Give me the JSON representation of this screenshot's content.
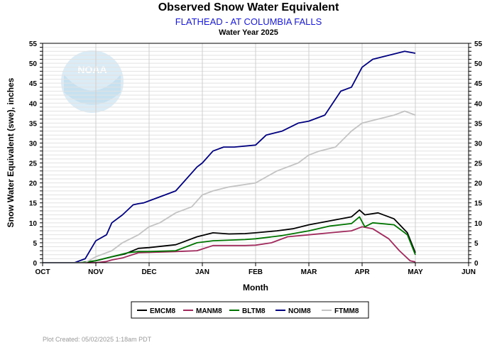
{
  "header": {
    "title": "Observed Snow Water Equivalent",
    "subtitle": "FLATHEAD - AT COLUMBIA FALLS",
    "water_year": "Water Year 2025"
  },
  "footer": {
    "plot_created": "Plot Created: 05/02/2025 1:18am PDT"
  },
  "watermark": {
    "text": "NOAA",
    "icon": "noaa-logo"
  },
  "chart_data": {
    "type": "line",
    "title": "Observed Snow Water Equivalent",
    "xlabel": "Month",
    "ylabel": "Snow Water Equivalent (swe),  inches",
    "categories": [
      "OCT",
      "NOV",
      "DEC",
      "JAN",
      "FEB",
      "MAR",
      "APR",
      "MAY",
      "JUN"
    ],
    "xlim": [
      0,
      8
    ],
    "ylim": [
      0,
      55
    ],
    "yticks": [
      0,
      5,
      10,
      15,
      20,
      25,
      30,
      35,
      40,
      45,
      50,
      55
    ],
    "grid": true,
    "legend_position": "bottom-center",
    "series": [
      {
        "name": "EMCM8",
        "color": "#000000",
        "x": [
          0,
          0.8,
          1.0,
          1.15,
          1.3,
          1.55,
          1.8,
          2.0,
          2.5,
          2.9,
          3.2,
          3.5,
          3.8,
          4.0,
          4.4,
          4.7,
          5.0,
          5.4,
          5.8,
          5.95,
          6.05,
          6.3,
          6.6,
          6.85,
          7.0
        ],
        "y": [
          0,
          0,
          0.5,
          1.0,
          1.5,
          2.2,
          3.6,
          3.8,
          4.5,
          6.5,
          7.5,
          7.2,
          7.3,
          7.5,
          8.0,
          8.5,
          9.5,
          10.5,
          11.5,
          13.2,
          12.0,
          12.5,
          11.0,
          7.5,
          2.5
        ]
      },
      {
        "name": "MANM8",
        "color": "#a0295c",
        "x": [
          0,
          1.0,
          1.2,
          1.3,
          1.5,
          1.8,
          2.5,
          2.9,
          3.2,
          3.8,
          4.0,
          4.3,
          4.6,
          5.0,
          5.4,
          5.8,
          6.0,
          6.2,
          6.5,
          6.7,
          6.9,
          7.0
        ],
        "y": [
          0,
          0,
          0.3,
          0.7,
          1.2,
          2.5,
          2.8,
          3.0,
          4.3,
          4.3,
          4.4,
          5.0,
          6.5,
          7.0,
          7.5,
          8.0,
          9.0,
          8.5,
          6.0,
          3.0,
          0.5,
          0.2
        ]
      },
      {
        "name": "BLTM8",
        "color": "#007400",
        "x": [
          0,
          0.7,
          1.0,
          1.3,
          1.6,
          1.8,
          2.0,
          2.5,
          2.9,
          3.2,
          3.8,
          4.0,
          4.5,
          5.0,
          5.4,
          5.8,
          5.95,
          6.05,
          6.2,
          6.6,
          6.85,
          7.0
        ],
        "y": [
          0,
          0,
          0.5,
          1.5,
          2.5,
          2.8,
          2.8,
          3.0,
          5.0,
          5.5,
          5.8,
          6.0,
          6.8,
          8.0,
          9.2,
          9.8,
          11.5,
          9.0,
          10.0,
          9.5,
          7.0,
          2.0
        ]
      },
      {
        "name": "NOIM8",
        "color": "#00007f",
        "x": [
          0,
          0.6,
          0.8,
          1.0,
          1.2,
          1.3,
          1.5,
          1.7,
          1.8,
          1.9,
          2.0,
          2.3,
          2.5,
          2.9,
          3.0,
          3.2,
          3.4,
          3.6,
          4.0,
          4.2,
          4.5,
          4.8,
          5.0,
          5.3,
          5.6,
          5.8,
          6.0,
          6.2,
          6.5,
          6.8,
          7.0
        ],
        "y": [
          0,
          0,
          1.0,
          5.5,
          7.0,
          10.0,
          12.0,
          14.5,
          14.8,
          15.0,
          15.5,
          17.0,
          18.0,
          24.0,
          25.0,
          28.0,
          29.0,
          29.0,
          29.5,
          32.0,
          33.0,
          35.0,
          35.5,
          37.0,
          43.0,
          44.0,
          49.0,
          51.0,
          52.0,
          53.0,
          52.5
        ]
      },
      {
        "name": "FTMM8",
        "color": "#c3c3c3",
        "x": [
          0,
          0.8,
          1.0,
          1.3,
          1.5,
          1.8,
          2.0,
          2.2,
          2.5,
          2.8,
          3.0,
          3.2,
          3.5,
          4.0,
          4.4,
          4.8,
          5.0,
          5.2,
          5.5,
          5.8,
          6.0,
          6.3,
          6.6,
          6.8,
          7.0
        ],
        "y": [
          0,
          0,
          1.5,
          3.0,
          5.0,
          7.0,
          9.0,
          10.0,
          12.5,
          14.0,
          17.0,
          18.0,
          19.0,
          20.0,
          23.0,
          25.0,
          27.0,
          28.0,
          29.0,
          33.0,
          35.0,
          36.0,
          37.0,
          38.0,
          37.0
        ]
      }
    ]
  }
}
